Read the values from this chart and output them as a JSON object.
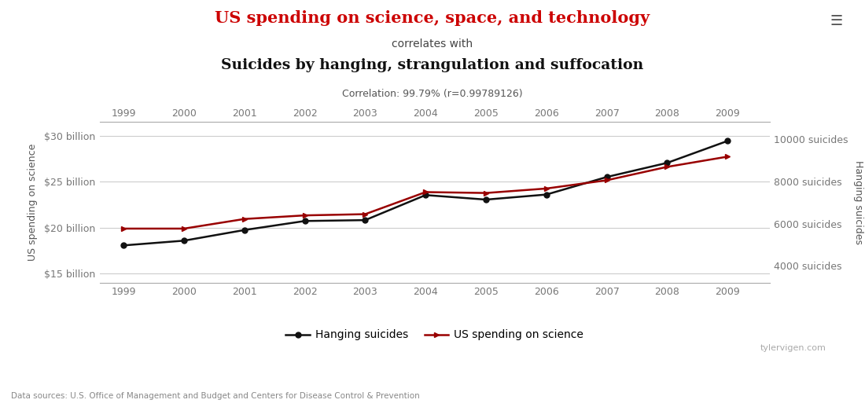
{
  "years": [
    1999,
    2000,
    2001,
    2002,
    2003,
    2004,
    2005,
    2006,
    2007,
    2008,
    2009
  ],
  "hanging_suicides": [
    5765,
    5765,
    6220,
    6390,
    6448,
    7491,
    7449,
    7660,
    8051,
    8684,
    9167
  ],
  "us_spending_billions": [
    18.079,
    18.594,
    19.753,
    20.734,
    20.831,
    23.557,
    23.065,
    23.614,
    25.525,
    27.063,
    29.449
  ],
  "title_line1": "US spending on science, space, and technology",
  "title_line2": "correlates with",
  "title_line3": "Suicides by hanging, strangulation and suffocation",
  "correlation_text": "Correlation: 99.79% (r=0.99789126)",
  "ylabel_left": "US spending on science",
  "ylabel_right": "Hanging suicides",
  "source_text": "Data sources: U.S. Office of Management and Budget and Centers for Disease Control & Prevention",
  "watermark": "tylervigen.com",
  "title_color": "#cc0000",
  "line_black_color": "#111111",
  "line_red_color": "#990000",
  "background_color": "#ffffff",
  "grid_color": "#cccccc",
  "left_ylim": [
    14,
    31.5
  ],
  "right_ylim": [
    3200,
    10800
  ],
  "left_yticks_labels": [
    "$15 billion",
    "$20 billion",
    "$25 billion",
    "$30 billion"
  ],
  "left_yticks_values": [
    15,
    20,
    25,
    30
  ],
  "right_yticks_labels": [
    "4000 suicides",
    "6000 suicides",
    "8000 suicides",
    "10000 suicides"
  ],
  "right_yticks_values": [
    4000,
    6000,
    8000,
    10000
  ],
  "tick_color": "#777777",
  "label_color": "#555555"
}
